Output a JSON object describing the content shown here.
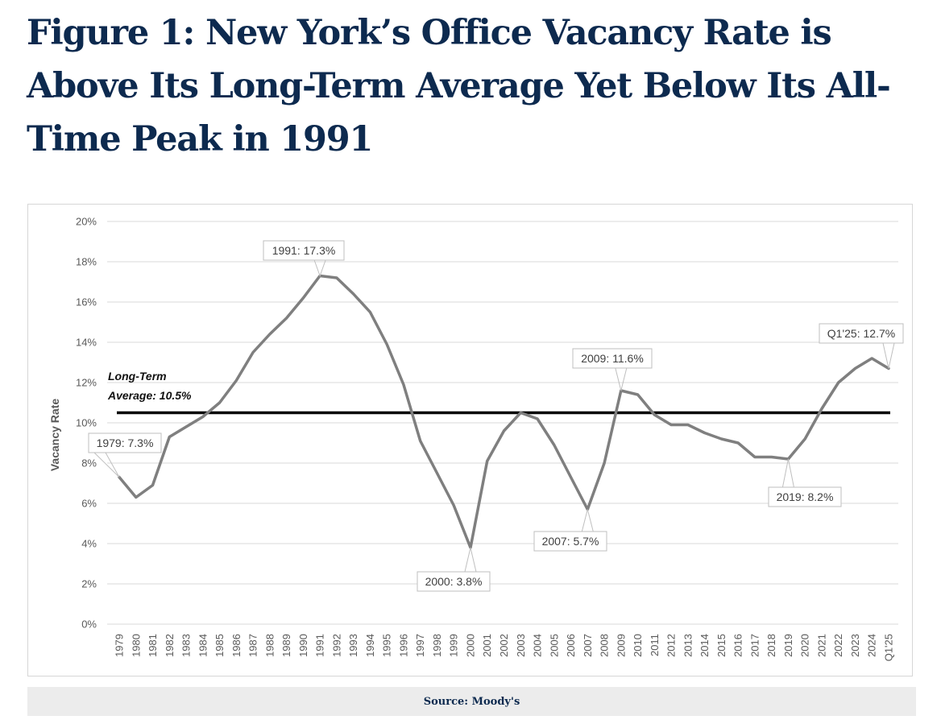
{
  "title": "Figure 1: New York’s Office Vacancy Rate is Above Its Long-Term Average Yet Below Its All-Time Peak in 1991",
  "source": "Source: Moody's",
  "chart_data": {
    "type": "line",
    "ylabel": "Vacancy Rate",
    "ylim": [
      0,
      20
    ],
    "yticks": [
      "0%",
      "2%",
      "4%",
      "6%",
      "8%",
      "10%",
      "12%",
      "14%",
      "16%",
      "18%",
      "20%"
    ],
    "grid": true,
    "categories": [
      "1979",
      "1980",
      "1981",
      "1982",
      "1983",
      "1984",
      "1985",
      "1986",
      "1987",
      "1988",
      "1989",
      "1990",
      "1991",
      "1992",
      "1993",
      "1994",
      "1995",
      "1996",
      "1997",
      "1998",
      "1999",
      "2000",
      "2001",
      "2002",
      "2003",
      "2004",
      "2005",
      "2006",
      "2007",
      "2008",
      "2009",
      "2010",
      "2011",
      "2012",
      "2013",
      "2014",
      "2015",
      "2016",
      "2017",
      "2018",
      "2019",
      "2020",
      "2021",
      "2022",
      "2023",
      "2024",
      "Q1'25"
    ],
    "series": [
      {
        "color": "#7f7f7f",
        "values": [
          7.3,
          6.3,
          6.9,
          9.3,
          9.8,
          10.3,
          11.0,
          12.1,
          13.5,
          14.4,
          15.2,
          16.2,
          17.3,
          17.2,
          16.4,
          15.5,
          13.9,
          11.9,
          9.1,
          7.5,
          5.9,
          3.8,
          8.1,
          9.6,
          10.5,
          10.2,
          8.9,
          7.3,
          5.7,
          8.0,
          11.6,
          11.4,
          10.4,
          9.9,
          9.9,
          9.5,
          9.2,
          9.0,
          8.3,
          8.3,
          8.2,
          9.2,
          10.7,
          12.0,
          12.7,
          13.2,
          12.7
        ]
      }
    ],
    "reference_line": {
      "value": 10.5,
      "label_line1": "Long-Term",
      "label_line2": "Average: 10.5%",
      "color": "#000000"
    },
    "annotations": [
      {
        "category": "1979",
        "label": "1979: 7.3%"
      },
      {
        "category": "1991",
        "label": "1991: 17.3%"
      },
      {
        "category": "2000",
        "label": "2000: 3.8%"
      },
      {
        "category": "2007",
        "label": "2007: 5.7%"
      },
      {
        "category": "2009",
        "label": "2009: 11.6%"
      },
      {
        "category": "2019",
        "label": "2019: 8.2%"
      },
      {
        "category": "Q1'25",
        "label": "Q1'25: 12.7%"
      }
    ]
  }
}
